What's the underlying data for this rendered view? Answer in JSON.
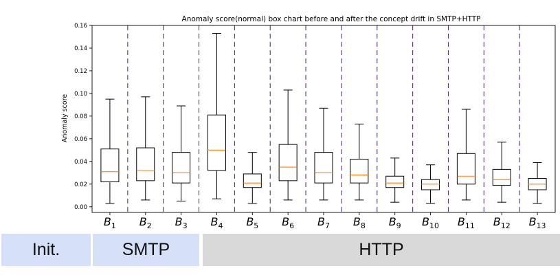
{
  "chart_data": {
    "type": "box",
    "title": "Anomaly score(normal) box chart before and after the concept drift in SMTP+HTTP",
    "xlabel": "",
    "ylabel": "Anomaly score",
    "ylim": [
      -0.005,
      0.16
    ],
    "yticks": [
      "0.00",
      "0.02",
      "0.04",
      "0.06",
      "0.08",
      "0.10",
      "0.12",
      "0.14",
      "0.16"
    ],
    "grid": false,
    "categories": [
      {
        "base": "B",
        "sub": "1"
      },
      {
        "base": "B",
        "sub": "2"
      },
      {
        "base": "B",
        "sub": "3"
      },
      {
        "base": "B",
        "sub": "4"
      },
      {
        "base": "B",
        "sub": "5"
      },
      {
        "base": "B",
        "sub": "6"
      },
      {
        "base": "B",
        "sub": "7"
      },
      {
        "base": "B",
        "sub": "8"
      },
      {
        "base": "B",
        "sub": "9"
      },
      {
        "base": "B",
        "sub": "10"
      },
      {
        "base": "B",
        "sub": "11"
      },
      {
        "base": "B",
        "sub": "12"
      },
      {
        "base": "B",
        "sub": "13"
      }
    ],
    "boxes": [
      {
        "min": 0.003,
        "q1": 0.022,
        "median": 0.031,
        "q3": 0.051,
        "max": 0.095
      },
      {
        "min": 0.006,
        "q1": 0.023,
        "median": 0.032,
        "q3": 0.052,
        "max": 0.097
      },
      {
        "min": 0.005,
        "q1": 0.021,
        "median": 0.03,
        "q3": 0.048,
        "max": 0.089
      },
      {
        "min": 0.007,
        "q1": 0.032,
        "median": 0.05,
        "q3": 0.081,
        "max": 0.153
      },
      {
        "min": 0.003,
        "q1": 0.017,
        "median": 0.021,
        "q3": 0.029,
        "max": 0.048
      },
      {
        "min": 0.006,
        "q1": 0.023,
        "median": 0.035,
        "q3": 0.055,
        "max": 0.103
      },
      {
        "min": 0.006,
        "q1": 0.021,
        "median": 0.03,
        "q3": 0.048,
        "max": 0.087
      },
      {
        "min": 0.006,
        "q1": 0.021,
        "median": 0.028,
        "q3": 0.042,
        "max": 0.073
      },
      {
        "min": 0.004,
        "q1": 0.017,
        "median": 0.021,
        "q3": 0.027,
        "max": 0.043
      },
      {
        "min": 0.003,
        "q1": 0.015,
        "median": 0.02,
        "q3": 0.024,
        "max": 0.037
      },
      {
        "min": 0.006,
        "q1": 0.02,
        "median": 0.027,
        "q3": 0.047,
        "max": 0.086
      },
      {
        "min": 0.004,
        "q1": 0.019,
        "median": 0.024,
        "q3": 0.033,
        "max": 0.057
      },
      {
        "min": 0.003,
        "q1": 0.015,
        "median": 0.02,
        "q3": 0.025,
        "max": 0.039
      }
    ],
    "separator_lines": [
      0.5,
      1.5,
      2.5,
      3.5,
      4.5,
      5.5,
      6.5,
      7.5,
      8.5,
      9.5,
      10.5,
      11.5
    ],
    "colors": {
      "box": "#000000",
      "median": "#ff7f0e",
      "separator": "#5b2c83"
    }
  },
  "phases": {
    "init": "Init.",
    "smtp": "SMTP",
    "http": "HTTP"
  },
  "phase_colors": {
    "init": "#d6e0f9",
    "smtp": "#d6e0f9",
    "http": "#d9d9d9"
  }
}
